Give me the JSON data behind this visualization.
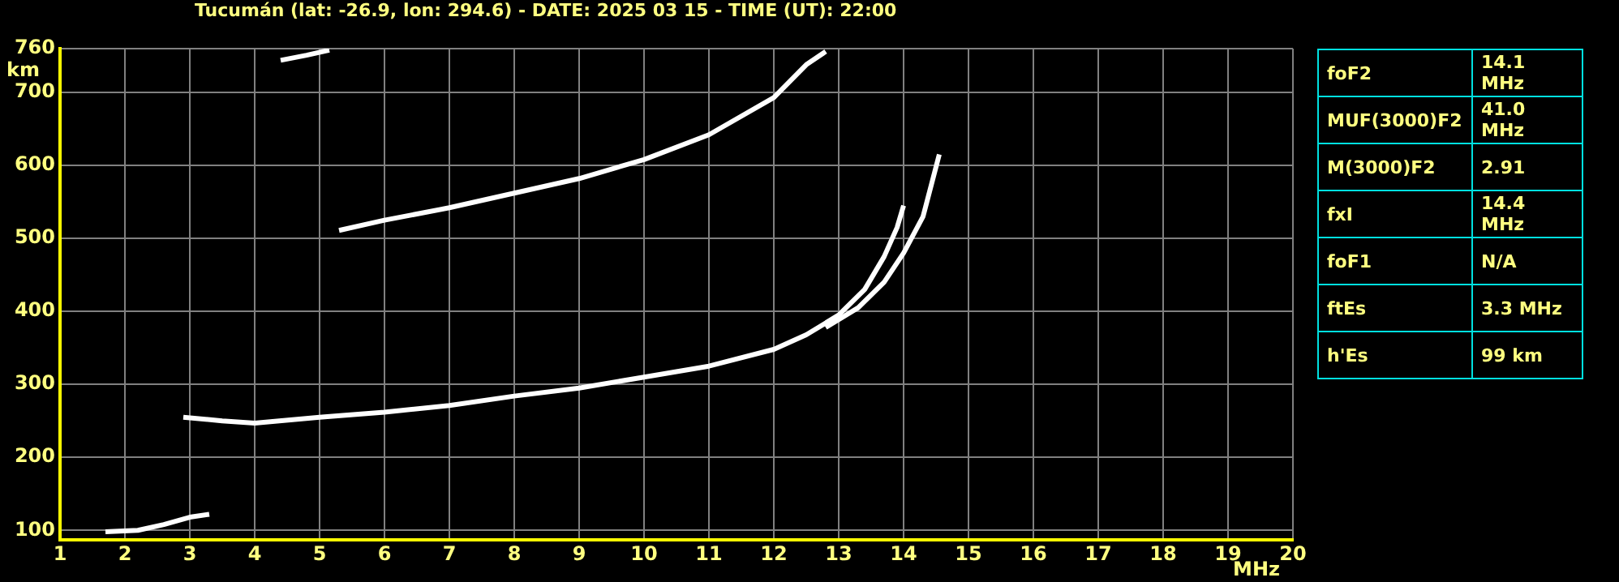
{
  "chart_data": [
    {
      "type": "line",
      "title": "Tucumán (lat: -26.9, lon: 294.6) - DATE: 2025 03 15 - TIME (UT): 22:00",
      "xlabel": "MHz",
      "ylabel": "km",
      "xlim": [
        1,
        20
      ],
      "ylim": [
        87,
        760
      ],
      "xticks": [
        1,
        2,
        3,
        4,
        5,
        6,
        7,
        8,
        9,
        10,
        11,
        12,
        13,
        14,
        15,
        16,
        17,
        18,
        19,
        20
      ],
      "yticks": [
        100,
        200,
        300,
        400,
        500,
        600,
        700,
        760
      ],
      "grid": true,
      "series": [
        {
          "color": "#ffffff",
          "x": [
            2.9,
            3.5,
            4,
            5,
            6,
            7,
            8,
            9,
            10,
            11,
            12,
            12.5,
            13,
            13.4,
            13.7,
            13.9,
            14.0
          ],
          "values": [
            255,
            250,
            247,
            255,
            262,
            271,
            284,
            295,
            310,
            325,
            348,
            368,
            395,
            430,
            475,
            515,
            545
          ]
        },
        {
          "color": "#ffffff",
          "x": [
            12.8,
            13.3,
            13.7,
            14.0,
            14.3,
            14.55
          ],
          "values": [
            378,
            405,
            440,
            480,
            530,
            615
          ]
        },
        {
          "color": "#ffffff",
          "x": [
            5.3,
            6,
            7,
            8,
            9,
            10,
            11,
            12,
            12.5,
            12.8
          ],
          "values": [
            511,
            525,
            542,
            562,
            582,
            608,
            642,
            693,
            738,
            756
          ]
        },
        {
          "color": "#ffffff",
          "x": [
            4.4,
            4.8,
            5.15
          ],
          "values": [
            744,
            751,
            758
          ]
        },
        {
          "color": "#ffffff",
          "x": [
            1.7,
            2.2,
            2.6,
            3.0,
            3.3
          ],
          "values": [
            98,
            100,
            108,
            118,
            122
          ]
        }
      ]
    },
    {
      "type": "other",
      "annotations": [
        "foF2",
        "14.1 MHz",
        "MUF(3000)F2",
        "41.0 MHz",
        "M(3000)F2",
        "2.91",
        "fxI",
        "14.4 MHz",
        "foF1",
        "N/A",
        "ftEs",
        "3.3 MHz",
        "h'Es",
        "99 km"
      ]
    }
  ]
}
